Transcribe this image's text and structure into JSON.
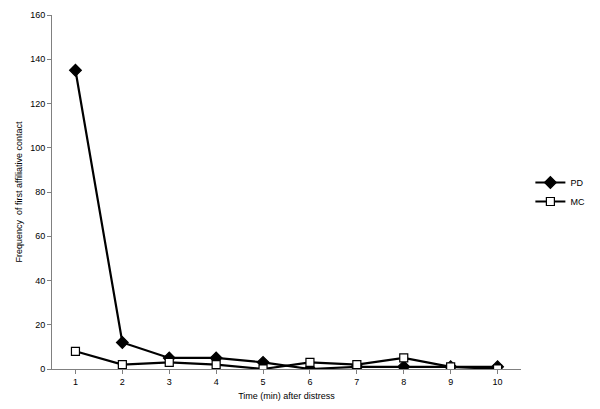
{
  "chart_data": {
    "type": "line",
    "x_label": "Time (min) after distress",
    "y_label": "Frequency  of first affiliative contact",
    "x": [
      1,
      2,
      3,
      4,
      5,
      6,
      7,
      8,
      9,
      10
    ],
    "series": [
      {
        "name": "PD",
        "color": "#000000",
        "marker": "diamond",
        "line_style": "solid",
        "values": [
          135,
          12,
          5,
          5,
          3,
          0,
          1,
          1,
          1,
          1
        ]
      },
      {
        "name": "MC",
        "color": "#000000",
        "marker": "hollow_square",
        "line_style": "solid",
        "values": [
          8,
          2,
          3,
          2,
          0,
          3,
          2,
          5,
          1,
          0
        ]
      }
    ],
    "xlim": [
      0.5,
      10.5
    ],
    "xticks": [
      1,
      2,
      3,
      4,
      5,
      6,
      7,
      8,
      9,
      10
    ],
    "ylim": [
      0,
      160
    ],
    "yticks": [
      0,
      20,
      40,
      60,
      80,
      100,
      120,
      140,
      160
    ],
    "grid": false,
    "legend": "right"
  }
}
